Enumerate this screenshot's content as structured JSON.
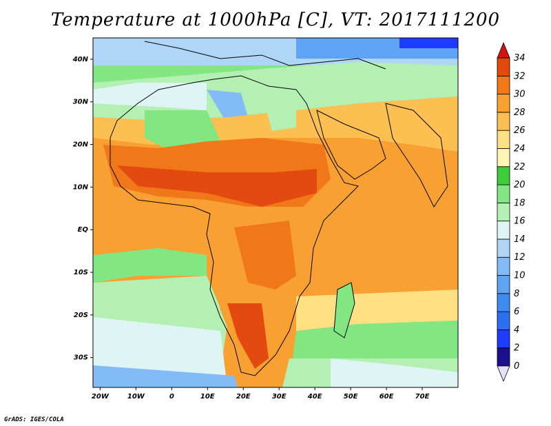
{
  "title": "Temperature at 1000hPa [C], VT: 2017111200",
  "credit": "GrADS: IGES/COLA",
  "map": {
    "lon_range": [
      -22,
      80
    ],
    "lat_range": [
      -37,
      45
    ],
    "lon_ticks": [
      {
        "value": -20,
        "label": "20W"
      },
      {
        "value": -10,
        "label": "10W"
      },
      {
        "value": 0,
        "label": "0"
      },
      {
        "value": 10,
        "label": "10E"
      },
      {
        "value": 20,
        "label": "20E"
      },
      {
        "value": 30,
        "label": "30E"
      },
      {
        "value": 40,
        "label": "40E"
      },
      {
        "value": 50,
        "label": "50E"
      },
      {
        "value": 60,
        "label": "60E"
      },
      {
        "value": 70,
        "label": "70E"
      }
    ],
    "lat_ticks": [
      {
        "value": 40,
        "label": "40N"
      },
      {
        "value": 30,
        "label": "30N"
      },
      {
        "value": 20,
        "label": "20N"
      },
      {
        "value": 10,
        "label": "10N"
      },
      {
        "value": 0,
        "label": "EQ"
      },
      {
        "value": -10,
        "label": "10S"
      },
      {
        "value": -20,
        "label": "20S"
      },
      {
        "value": -30,
        "label": "30S"
      }
    ]
  },
  "colorbar": {
    "levels": [
      0,
      2,
      4,
      6,
      8,
      10,
      12,
      14,
      16,
      18,
      20,
      22,
      24,
      26,
      28,
      30,
      32,
      34
    ],
    "colors": [
      "#1a0f8c",
      "#1e3cff",
      "#2b6ff5",
      "#3e8cf0",
      "#5fa3f5",
      "#82bbf7",
      "#b0d6f7",
      "#dff5f5",
      "#b4f0b4",
      "#82e682",
      "#3ccc3c",
      "#fff5b4",
      "#ffe082",
      "#fcbf52",
      "#f9a032",
      "#f07818",
      "#e34a0f"
    ],
    "low_cap_color": "#e6e0fa",
    "high_cap_color": "#d4140f"
  }
}
